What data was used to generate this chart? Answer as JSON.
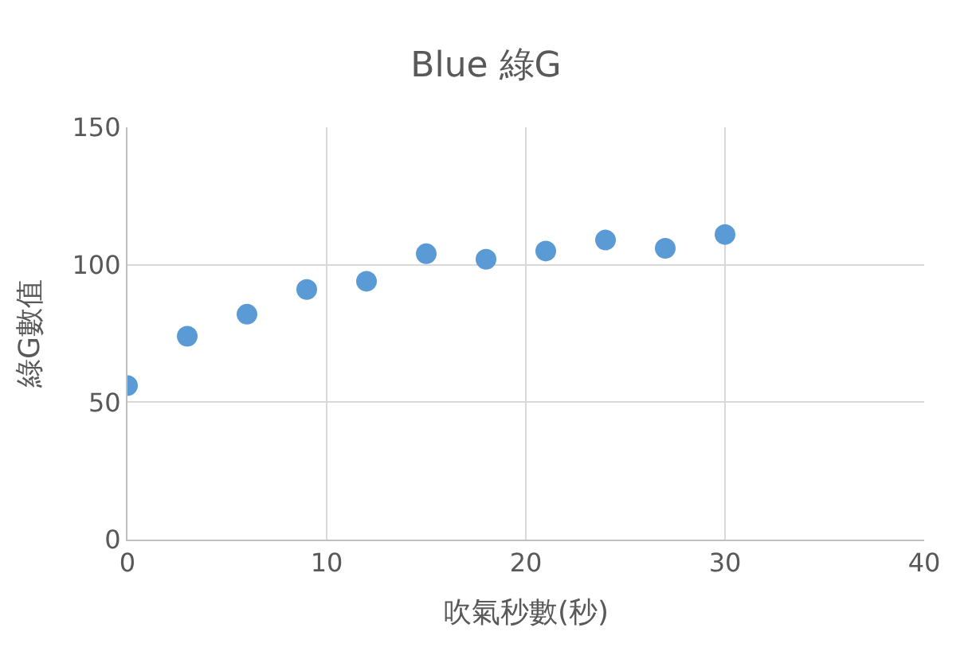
{
  "chart_data": {
    "type": "scatter",
    "title": "Blue 綠G",
    "xlabel": "吹氣秒數(秒)",
    "ylabel": "綠G數值",
    "x": [
      0,
      3,
      6,
      9,
      12,
      15,
      18,
      21,
      24,
      27,
      30
    ],
    "series": [
      {
        "color": "#5b9bd5",
        "values": [
          56,
          74,
          82,
          91,
          94,
          104,
          102,
          105,
          109,
          106,
          111
        ]
      }
    ],
    "xlim": [
      0,
      40
    ],
    "xticks": [
      0,
      10,
      20,
      30,
      40
    ],
    "ylim": [
      0,
      150
    ],
    "yticks": [
      0,
      50,
      100,
      150
    ],
    "grid": true,
    "marker": "circle"
  }
}
